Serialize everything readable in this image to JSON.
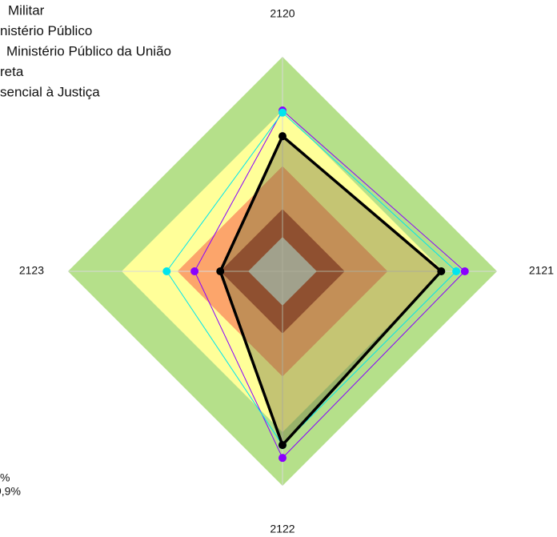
{
  "chart_data": {
    "type": "radar",
    "categories": [
      "2120",
      "2121",
      "2122",
      "2123"
    ],
    "rlim": [
      0,
      100
    ],
    "bands": [
      {
        "value": 100,
        "color": "#b5e08a"
      },
      {
        "value": 75,
        "color": "#ffff99"
      },
      {
        "value": 49,
        "color": "#fca56b"
      },
      {
        "value": 29,
        "color": "#a63c2a"
      },
      {
        "value": 16,
        "color": "#c4c4c4"
      }
    ],
    "series": [
      {
        "color": "#8a00ff",
        "width": 1,
        "values": [
          75,
          85,
          87,
          41
        ]
      },
      {
        "color": "#00e5ee",
        "width": 1,
        "values": [
          74,
          81,
          81,
          54
        ]
      },
      {
        "color": "#000000",
        "width": 3.5,
        "fill": "#6f6f3a",
        "values": [
          63,
          74,
          81,
          29
        ]
      }
    ],
    "legend_items": [
      "Militar",
      "nistério Público",
      "Ministério Público da União",
      "reta",
      "sencial à Justiça"
    ],
    "notes": [
      "%",
      "9,9%"
    ]
  }
}
